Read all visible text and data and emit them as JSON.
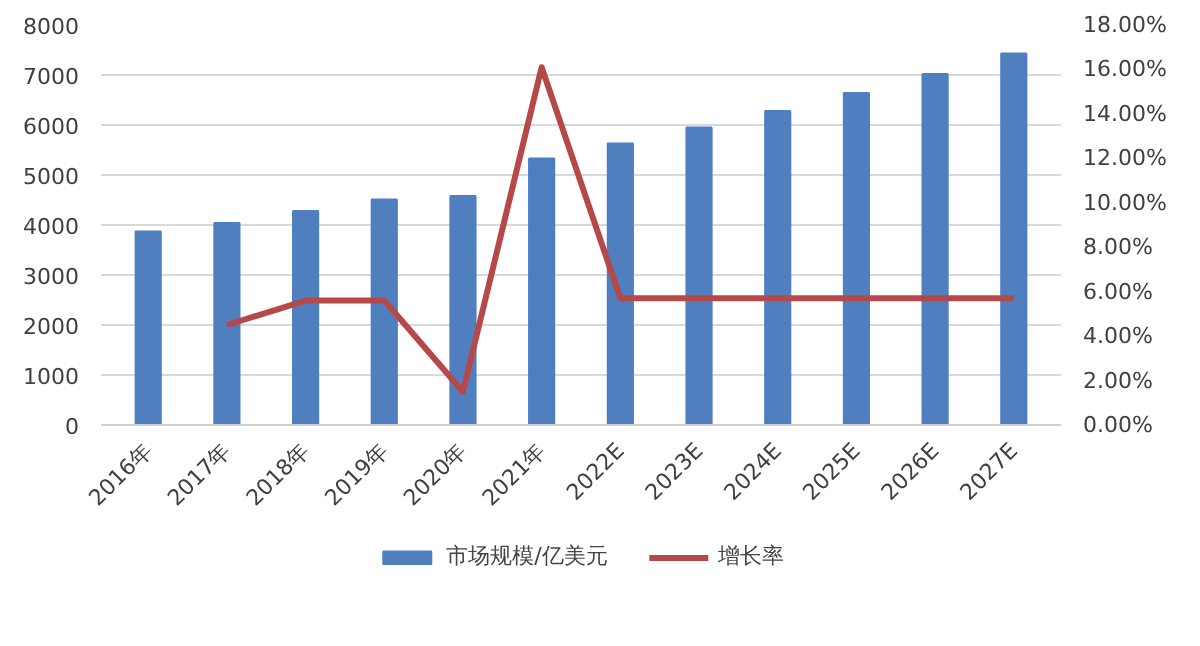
{
  "chart_data": {
    "type": "bar",
    "categories": [
      "2016年",
      "2017年",
      "2018年",
      "2019年",
      "2020年",
      "2021年",
      "2022E",
      "2023E",
      "2024E",
      "2025E",
      "2026E",
      "2027E"
    ],
    "series": [
      {
        "name": "市场规模/亿美元",
        "color": "#4f7fbf",
        "values": [
          3870,
          4040,
          4280,
          4510,
          4580,
          5330,
          5630,
          5950,
          6280,
          6640,
          7020,
          7430
        ]
      },
      {
        "name": "增长率",
        "type": "line",
        "axis": "y2",
        "color": "#b5494a",
        "values": [
          null,
          4.5,
          5.6,
          5.6,
          1.5,
          16.1,
          5.7,
          5.7,
          5.7,
          5.7,
          5.7,
          5.7
        ]
      }
    ],
    "ylim": [
      0,
      8000
    ],
    "yticks": [
      0,
      1000,
      2000,
      3000,
      4000,
      5000,
      6000,
      7000,
      8000
    ],
    "y2lim": [
      0,
      18
    ],
    "y2ticks": [
      {
        "value": 0,
        "label": "0.00%"
      },
      {
        "value": 2,
        "label": "2.00%"
      },
      {
        "value": 4,
        "label": "4.00%"
      },
      {
        "value": 6,
        "label": "6.00%"
      },
      {
        "value": 8,
        "label": "8.00%"
      },
      {
        "value": 10,
        "label": "10.00%"
      },
      {
        "value": 12,
        "label": "12.00%"
      },
      {
        "value": 14,
        "label": "14.00%"
      },
      {
        "value": 16,
        "label": "16.00%"
      },
      {
        "value": 18,
        "label": "18.00%"
      }
    ],
    "grid": "y",
    "legend": "bottom",
    "line_style": "solid",
    "marker": "none"
  }
}
